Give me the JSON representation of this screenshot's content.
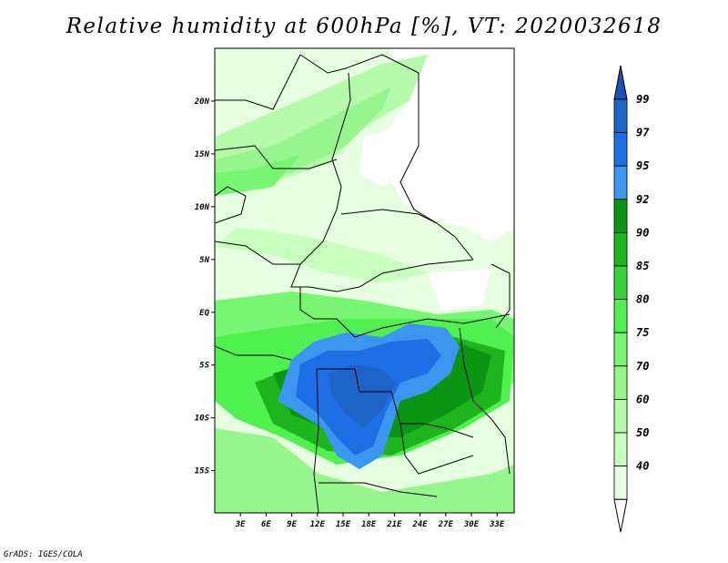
{
  "title": "Relative humidity at 600hPa [%], VT: 2020032618",
  "credit": "GrADS: IGES/COLA",
  "map": {
    "lat_range": [
      -19,
      25
    ],
    "lon_range": [
      0,
      35
    ],
    "lat_ticks": [
      {
        "label": "20N",
        "value": 20
      },
      {
        "label": "15N",
        "value": 15
      },
      {
        "label": "10N",
        "value": 10
      },
      {
        "label": "5N",
        "value": 5
      },
      {
        "label": "EQ",
        "value": 0
      },
      {
        "label": "5S",
        "value": -5
      },
      {
        "label": "10S",
        "value": -10
      },
      {
        "label": "15S",
        "value": -15
      }
    ],
    "lon_ticks": [
      {
        "label": "3E",
        "value": 3
      },
      {
        "label": "6E",
        "value": 6
      },
      {
        "label": "9E",
        "value": 9
      },
      {
        "label": "12E",
        "value": 12
      },
      {
        "label": "15E",
        "value": 15
      },
      {
        "label": "18E",
        "value": 18
      },
      {
        "label": "21E",
        "value": 21
      },
      {
        "label": "24E",
        "value": 24
      },
      {
        "label": "27E",
        "value": 27
      },
      {
        "label": "30E",
        "value": 30
      },
      {
        "label": "33E",
        "value": 33
      }
    ]
  },
  "colorbar": {
    "levels": [
      {
        "label": "99",
        "color": "#1e64c8"
      },
      {
        "label": "97",
        "color": "#1e6ee6"
      },
      {
        "label": "95",
        "color": "#3c96f0"
      },
      {
        "label": "92",
        "color": "#0a9614"
      },
      {
        "label": "90",
        "color": "#1eb41e"
      },
      {
        "label": "85",
        "color": "#37d23c"
      },
      {
        "label": "80",
        "color": "#50f050"
      },
      {
        "label": "75",
        "color": "#78f573"
      },
      {
        "label": "70",
        "color": "#96f58c"
      },
      {
        "label": "60",
        "color": "#b4faaa"
      },
      {
        "label": "50",
        "color": "#c8ffbe"
      },
      {
        "label": "40",
        "color": "#e6ffe1"
      }
    ],
    "top_color": "#1e50b4",
    "bottom_color": "#ffffff"
  }
}
